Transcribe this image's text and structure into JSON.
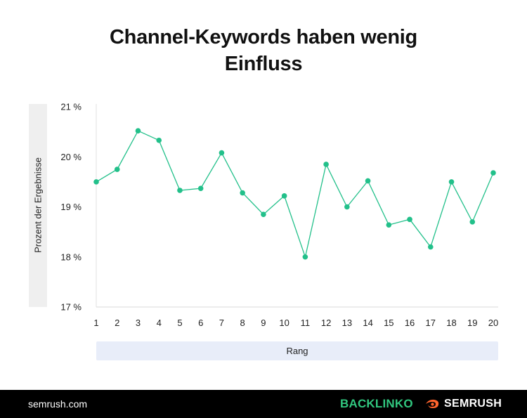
{
  "chart_data": {
    "type": "line",
    "title": [
      "Channel-Keywords haben wenig",
      "Einfluss"
    ],
    "xlabel": "Rang",
    "ylabel": "Prozent der Ergebnisse",
    "x": [
      1,
      2,
      3,
      4,
      5,
      6,
      7,
      8,
      9,
      10,
      11,
      12,
      13,
      14,
      15,
      16,
      17,
      18,
      19,
      20
    ],
    "y": [
      19.5,
      19.75,
      20.52,
      20.33,
      19.33,
      19.37,
      20.08,
      19.28,
      18.85,
      19.22,
      18.0,
      19.85,
      19.0,
      19.52,
      18.64,
      18.75,
      18.2,
      19.5,
      18.7,
      19.68
    ],
    "ylim": [
      17,
      21
    ],
    "yticks": [
      17,
      18,
      19,
      20,
      21
    ],
    "ytick_labels": [
      "17 %",
      "18 %",
      "19 %",
      "20 %",
      "21 %"
    ],
    "xtick_labels": [
      "1",
      "2",
      "3",
      "4",
      "5",
      "6",
      "7",
      "8",
      "9",
      "10",
      "11",
      "12",
      "13",
      "14",
      "15",
      "16",
      "17",
      "18",
      "19",
      "20"
    ],
    "color": "#22c08a",
    "grid": false
  },
  "footer": {
    "url": "semrush.com",
    "brand_backlinko": "BACKLINKO",
    "brand_semrush": "SEMRUSH"
  }
}
